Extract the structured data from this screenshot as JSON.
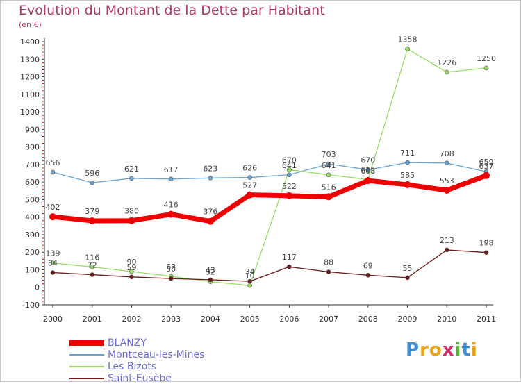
{
  "chart_data": {
    "type": "line",
    "title": "Evolution du Montant de la Dette par Habitant",
    "subtitle": "(en €)",
    "x": [
      "2000",
      "2001",
      "2002",
      "2003",
      "2004",
      "2005",
      "2006",
      "2007",
      "2008",
      "2009",
      "2010",
      "2011"
    ],
    "y_ticks": [
      "-100",
      "0",
      "100",
      "200",
      "300",
      "400",
      "500",
      "600",
      "700",
      "800",
      "900",
      "1000",
      "1100",
      "1200",
      "1300",
      "1400"
    ],
    "ylim": [
      -100,
      1400
    ],
    "grid": false,
    "legend_position": "bottom-left",
    "series": [
      {
        "name": "BLANZY",
        "color": "#ee0000",
        "values": [
          402,
          379,
          380,
          416,
          376,
          527,
          522,
          516,
          608,
          585,
          553,
          637
        ],
        "labels": [
          "402",
          "379",
          "380",
          "416",
          "376",
          "527",
          "522",
          "516",
          "608",
          "585",
          "553",
          "637"
        ]
      },
      {
        "name": "Montceau-les-Mines",
        "color": "#6aa2d0",
        "values": [
          656,
          596,
          621,
          617,
          623,
          626,
          641,
          703,
          670,
          711,
          708,
          659
        ],
        "labels": [
          "656",
          "596",
          "621",
          "617",
          "623",
          "626",
          "641",
          "703",
          "670",
          "711",
          "708",
          "659"
        ]
      },
      {
        "name": "Les Bizots",
        "color": "#99dd66",
        "values": [
          139,
          116,
          90,
          62,
          32,
          10,
          670,
          641,
          615,
          1358,
          1226,
          1250
        ],
        "labels": [
          "139",
          "116",
          "90",
          "62",
          "32",
          "10",
          "670",
          "641",
          "615",
          "1358",
          "1226",
          "1250"
        ]
      },
      {
        "name": "Saint-Eusèbe",
        "color": "#6b1a1a",
        "values": [
          84,
          72,
          59,
          50,
          43,
          34,
          117,
          88,
          69,
          55,
          213,
          198
        ],
        "labels": [
          "84",
          "72",
          "59",
          "50",
          "43",
          "34",
          "117",
          "88",
          "69",
          "55",
          "213",
          "198"
        ]
      }
    ]
  },
  "logo": {
    "letters": [
      "P",
      "r",
      "o",
      "x",
      "i",
      "t",
      "i"
    ],
    "colors": [
      "#3b8fd6",
      "#e8a21a",
      "#e8a21a",
      "#cc2f6a",
      "#55b035",
      "#3b8fd6",
      "#e8a21a"
    ]
  }
}
